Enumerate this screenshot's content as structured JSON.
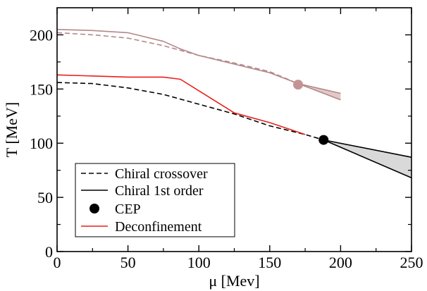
{
  "chart_data": {
    "type": "line",
    "xlabel": "μ [Mev]",
    "ylabel": "T [MeV]",
    "xlim": [
      0,
      250
    ],
    "ylim": [
      0,
      225
    ],
    "xticks": [
      0,
      50,
      100,
      150,
      200,
      250
    ],
    "yticks": [
      0,
      50,
      100,
      150,
      200
    ],
    "grid": false,
    "legend_position": "lower-left",
    "legend": [
      {
        "label": "Chiral crossover",
        "style": "dashed",
        "color": "#000000"
      },
      {
        "label": "Chiral 1st order",
        "style": "solid",
        "color": "#000000"
      },
      {
        "label": "CEP",
        "style": "marker",
        "color": "#000000"
      },
      {
        "label": "Deconfinement",
        "style": "solid",
        "color": "#e8201c"
      }
    ],
    "series": [
      {
        "name": "Chiral crossover",
        "color": "#000000",
        "dash": true,
        "points": [
          [
            0,
            156
          ],
          [
            25,
            155
          ],
          [
            50,
            151
          ],
          [
            75,
            145
          ],
          [
            100,
            136
          ],
          [
            125,
            127
          ],
          [
            150,
            116
          ],
          [
            175,
            108
          ],
          [
            188,
            103
          ]
        ]
      },
      {
        "name": "Deconfinement",
        "color": "#e8201c",
        "dash": false,
        "points": [
          [
            0,
            163
          ],
          [
            50,
            161
          ],
          [
            75,
            161
          ],
          [
            87,
            159
          ],
          [
            125,
            128
          ],
          [
            150,
            119
          ],
          [
            175,
            108
          ]
        ]
      },
      {
        "color": "#b48888",
        "dash": true,
        "points": [
          [
            0,
            202
          ],
          [
            25,
            200
          ],
          [
            50,
            197
          ],
          [
            75,
            190
          ],
          [
            100,
            181
          ],
          [
            125,
            174
          ],
          [
            150,
            166
          ],
          [
            170,
            155
          ]
        ]
      },
      {
        "color": "#b48888",
        "dash": false,
        "points": [
          [
            0,
            205
          ],
          [
            25,
            204
          ],
          [
            50,
            202
          ],
          [
            75,
            194
          ],
          [
            87,
            187
          ],
          [
            100,
            181
          ],
          [
            125,
            173
          ],
          [
            150,
            165
          ],
          [
            170,
            155
          ]
        ]
      },
      {
        "color": "#b48888",
        "dash": false,
        "points": [
          [
            170,
            155
          ],
          [
            200,
            146
          ]
        ]
      },
      {
        "color": "#b48888",
        "dash": false,
        "points": [
          [
            170,
            155
          ],
          [
            200,
            140
          ]
        ]
      },
      {
        "name": "Chiral 1st order",
        "color": "#000000",
        "dash": false,
        "points": [
          [
            188,
            103
          ],
          [
            250,
            87
          ]
        ]
      },
      {
        "color": "#000000",
        "dash": false,
        "points": [
          [
            188,
            103
          ],
          [
            250,
            68
          ]
        ]
      }
    ],
    "band": {
      "color": "#d9d9d9",
      "upper": [
        [
          188,
          103
        ],
        [
          250,
          87
        ]
      ],
      "lower": [
        [
          188,
          103
        ],
        [
          250,
          68
        ]
      ]
    },
    "band_hatched": {
      "color": "#e2c9c9",
      "upper": [
        [
          170,
          155
        ],
        [
          200,
          146
        ]
      ],
      "lower": [
        [
          170,
          155
        ],
        [
          200,
          140
        ]
      ]
    },
    "markers": [
      {
        "name": "CEP",
        "x": 188,
        "y": 103,
        "color": "#000000"
      },
      {
        "x": 170,
        "y": 154,
        "color": "#c49494"
      }
    ]
  }
}
